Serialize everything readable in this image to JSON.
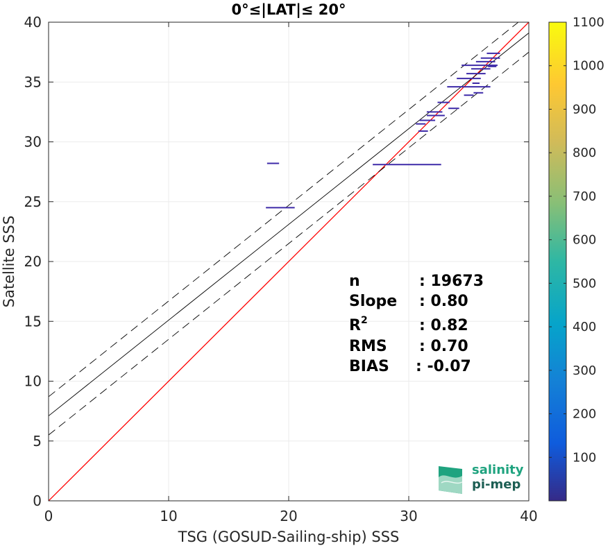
{
  "chart_data": {
    "type": "scatter",
    "title": "0°≤|LAT|≤ 20°",
    "xlabel": "TSG (GOSUD-Sailing-ship) SSS",
    "ylabel": "Satellite SSS",
    "xlim": [
      0,
      40
    ],
    "ylim": [
      0,
      40
    ],
    "xticks": [
      "0",
      "10",
      "20",
      "30",
      "40"
    ],
    "yticks": [
      "0",
      "5",
      "10",
      "15",
      "20",
      "25",
      "30",
      "35",
      "40"
    ],
    "grid": true,
    "colorbar": {
      "range": [
        0,
        1100
      ],
      "ticks": [
        "100",
        "200",
        "300",
        "400",
        "500",
        "600",
        "700",
        "800",
        "900",
        "1000",
        "1100"
      ],
      "colormap": "parula"
    },
    "lines": {
      "identity": {
        "color": "#ff0000",
        "x": [
          0,
          40
        ],
        "y": [
          0,
          40
        ]
      },
      "regression": {
        "color": "#000000",
        "x": [
          0,
          40
        ],
        "y": [
          7.1,
          39.1
        ]
      },
      "upper_bound": {
        "color": "#000000",
        "style": "dashed",
        "x": [
          0,
          40
        ],
        "y": [
          8.7,
          40.7
        ]
      },
      "lower_bound": {
        "color": "#000000",
        "style": "dashed",
        "x": [
          0,
          40
        ],
        "y": [
          5.5,
          37.5
        ]
      }
    },
    "density_points": [
      {
        "x": [
          18.2,
          19.2
        ],
        "y": 28.2
      },
      {
        "x": [
          18.1,
          20.5
        ],
        "y": 24.5
      },
      {
        "x": [
          27.0,
          32.7
        ],
        "y": 28.1
      },
      {
        "x": [
          30.6,
          31.4
        ],
        "y": 31.5
      },
      {
        "x": [
          30.8,
          31.6
        ],
        "y": 30.9
      },
      {
        "x": [
          30.9,
          32.2
        ],
        "y": 31.8
      },
      {
        "x": [
          31.5,
          32.8
        ],
        "y": 32.5
      },
      {
        "x": [
          31.5,
          33.0
        ],
        "y": 32.2
      },
      {
        "x": [
          32.4,
          33.4
        ],
        "y": 33.3
      },
      {
        "x": [
          33.3,
          34.2
        ],
        "y": 32.8
      },
      {
        "x": [
          34.6,
          35.4
        ],
        "y": 33.9
      },
      {
        "x": [
          35.4,
          36.2
        ],
        "y": 34.1
      },
      {
        "x": [
          33.2,
          36.8
        ],
        "y": 34.6
      },
      {
        "x": [
          34.0,
          36.0
        ],
        "y": 35.3
      },
      {
        "x": [
          34.8,
          36.4
        ],
        "y": 35.7
      },
      {
        "x": [
          35.2,
          36.8
        ],
        "y": 36.1
      },
      {
        "x": [
          34.4,
          37.4
        ],
        "y": 36.4
      },
      {
        "x": [
          35.6,
          37.2
        ],
        "y": 36.7
      },
      {
        "x": [
          36.0,
          37.6
        ],
        "y": 37.0
      },
      {
        "x": [
          36.5,
          37.6
        ],
        "y": 37.4
      },
      {
        "x": [
          35.3,
          35.9
        ],
        "y": 34.9
      },
      {
        "x": [
          36.6,
          37.3
        ],
        "y": 36.3
      }
    ],
    "stats": [
      {
        "label": "n",
        "value": ": 19673"
      },
      {
        "label": "Slope",
        "value": ": 0.80"
      },
      {
        "label": "R",
        "sup": "2",
        "value": ": 0.82"
      },
      {
        "label": "RMS",
        "value": ": 0.70"
      },
      {
        "label": "BIAS",
        "value": ": -0.07"
      }
    ]
  },
  "logo": {
    "line1": "salinity",
    "line2": "pi-mep"
  },
  "colors": {
    "accent_logo": "#1fa37f",
    "grid": "#ebebeb",
    "point": "#3d2aa8"
  }
}
